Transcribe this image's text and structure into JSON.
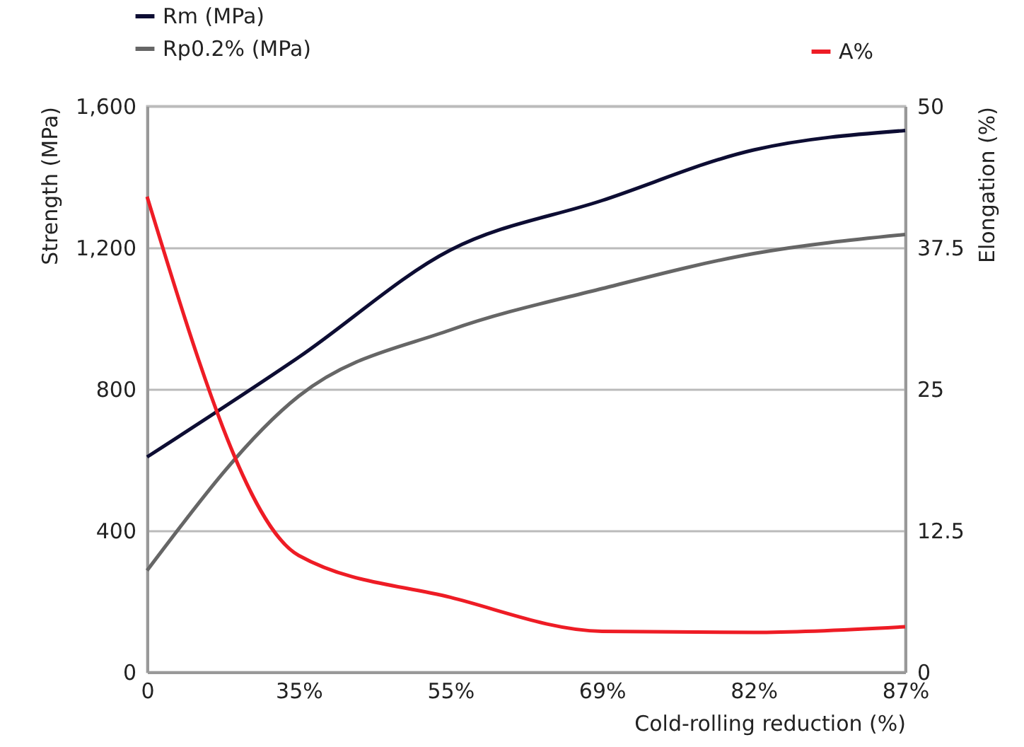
{
  "chart_data": {
    "type": "line",
    "xlabel": "Cold-rolling reduction (%)",
    "ylabel": "Strength (MPa)",
    "y2label": "Elongation (%)",
    "categories": [
      "0",
      "35%",
      "55%",
      "69%",
      "82%",
      "87%"
    ],
    "ylim": [
      0,
      1600
    ],
    "yticks": [
      0,
      400,
      800,
      {
        "value": 1200,
        "label": "1,200"
      },
      {
        "value": 1600,
        "label": "1,600"
      }
    ],
    "y2lim": [
      0,
      50
    ],
    "y2ticks": [
      0,
      12.5,
      25,
      37.5,
      50
    ],
    "series": [
      {
        "name": "Rm (MPa)",
        "color": "#0d0d33",
        "values": [
          608,
          890,
          1193,
          1333,
          1476,
          1531
        ]
      },
      {
        "name": "Rp0.2% (MPa)",
        "color": "#666666",
        "values": [
          287,
          780,
          967,
          1084,
          1183,
          1237
        ]
      },
      {
        "name": "A%",
        "color": "#ee1c25",
        "axis": "y2",
        "values": [
          42,
          10.3,
          6.6,
          3.6,
          3.5,
          4
        ]
      }
    ],
    "grid": "y",
    "legend": "top",
    "marker": "none",
    "line_style": "solid"
  }
}
